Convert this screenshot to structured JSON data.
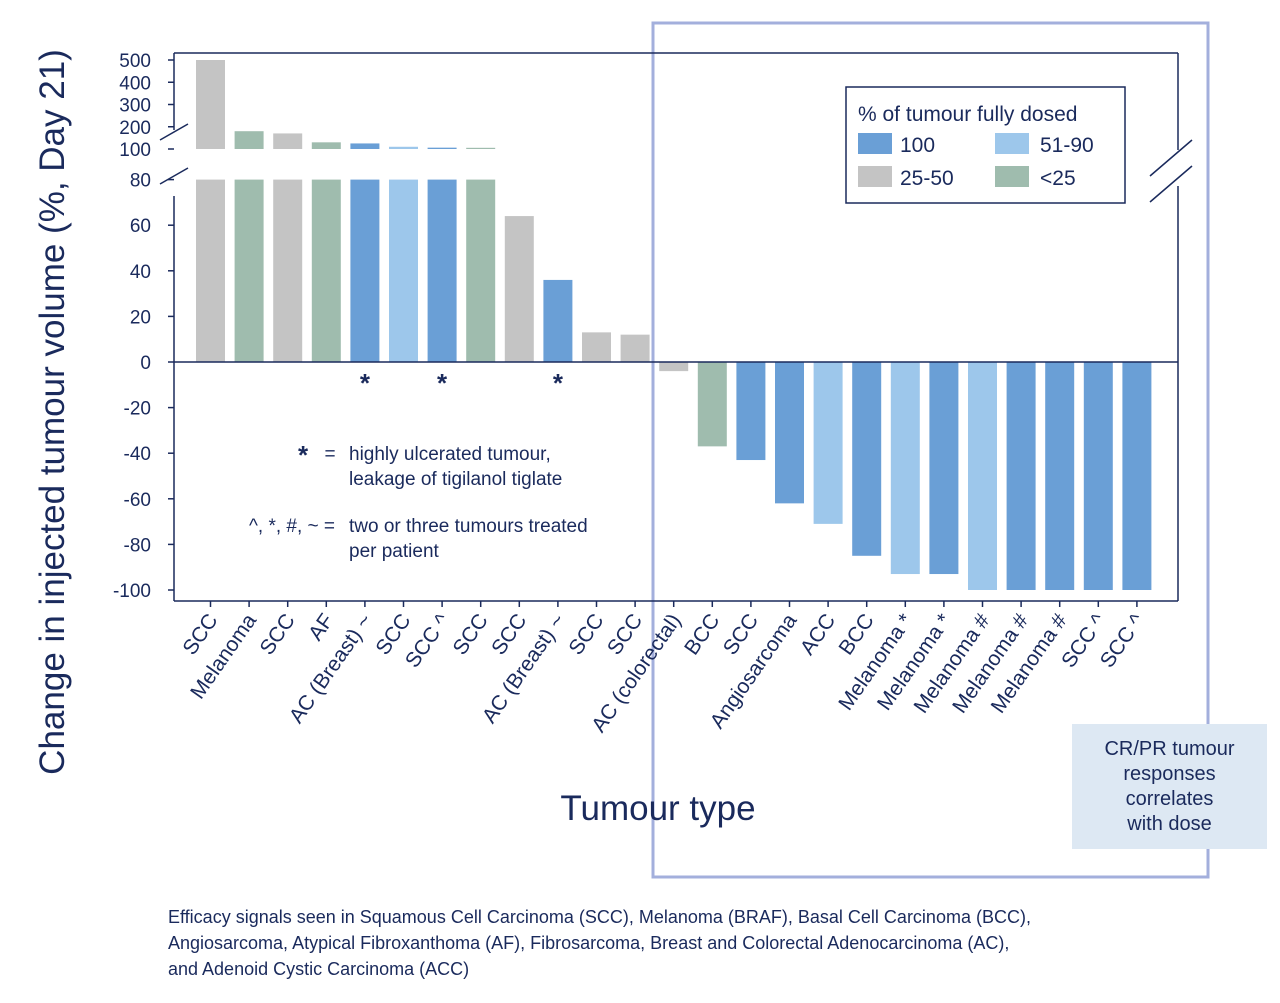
{
  "chart_data": {
    "type": "bar",
    "ylabel": "Change in injected tumour volume (%, Day 21)",
    "xlabel": "Tumour type",
    "ylim_lower": [
      -100,
      80
    ],
    "ylim_upper": [
      100,
      500
    ],
    "yticks_lower": [
      "80",
      "60",
      "40",
      "20",
      "0",
      "-20",
      "-40",
      "-60",
      "-80",
      "-100"
    ],
    "yticks_upper": [
      "500",
      "400",
      "300",
      "200",
      "100"
    ],
    "colors": {
      "100": "#6a9fd6",
      "51-90": "#9dc7eb",
      "25-50": "#c4c4c4",
      "<25": "#9fbcae"
    },
    "categories": [
      "SCC",
      "Melanoma",
      "SCC",
      "AF",
      "AC (Breast) ~",
      "SCC",
      "SCC ^",
      "SCC",
      "SCC",
      "AC (Breast) ~",
      "SCC",
      "SCC",
      "AC (colorectal)",
      "BCC",
      "SCC",
      "Angiosarcoma",
      "ACC",
      "BCC",
      "Melanoma *",
      "Melanoma *",
      "Melanoma #",
      "Melanoma #",
      "Melanoma #",
      "SCC ^",
      "SCC ^"
    ],
    "values": [
      500,
      180,
      170,
      130,
      125,
      110,
      106,
      104,
      64,
      36,
      13,
      12,
      -4,
      -37,
      -43,
      -62,
      -71,
      -85,
      -93,
      -93,
      -100,
      -100,
      -100,
      -100,
      -100
    ],
    "dose_group": [
      "25-50",
      "<25",
      "25-50",
      "<25",
      "100",
      "51-90",
      "100",
      "<25",
      "25-50",
      "100",
      "25-50",
      "25-50",
      "25-50",
      "<25",
      "100",
      "100",
      "51-90",
      "100",
      "51-90",
      "100",
      "51-90",
      "100",
      "100",
      "100",
      "100"
    ],
    "marker_bars": [
      4,
      6,
      9
    ],
    "marker_symbol": "*",
    "legend": {
      "title": "% of tumour fully dosed",
      "entries": [
        {
          "label": "100",
          "group": "100"
        },
        {
          "label": "51-90",
          "group": "51-90"
        },
        {
          "label": "25-50",
          "group": "25-50"
        },
        {
          "label": "<25",
          "group": "<25"
        }
      ]
    },
    "notes": {
      "ulcer_symbol": "*",
      "ulcer_eq": "=",
      "ulcer_line1": "highly ulcerated tumour,",
      "ulcer_line2": "leakage of tigilanol tiglate",
      "multi_symbols": "^, *, #, ~ =",
      "multi_line1": "two or three tumours treated",
      "multi_line2": "per patient"
    }
  },
  "callout": {
    "line1": "CR/PR  tumour",
    "line2": "responses",
    "line3": "correlates",
    "line4": "with dose"
  },
  "caption": {
    "line1": "Efficacy signals seen in Squamous Cell Carcinoma (SCC), Melanoma (BRAF), Basal Cell Carcinoma (BCC),",
    "line2": "Angiosarcoma, Atypical Fibroxanthoma (AF), Fibrosarcoma, Breast and Colorectal Adenocarcinoma (AC),",
    "line3": "and Adenoid Cystic Carcinoma (ACC)"
  }
}
